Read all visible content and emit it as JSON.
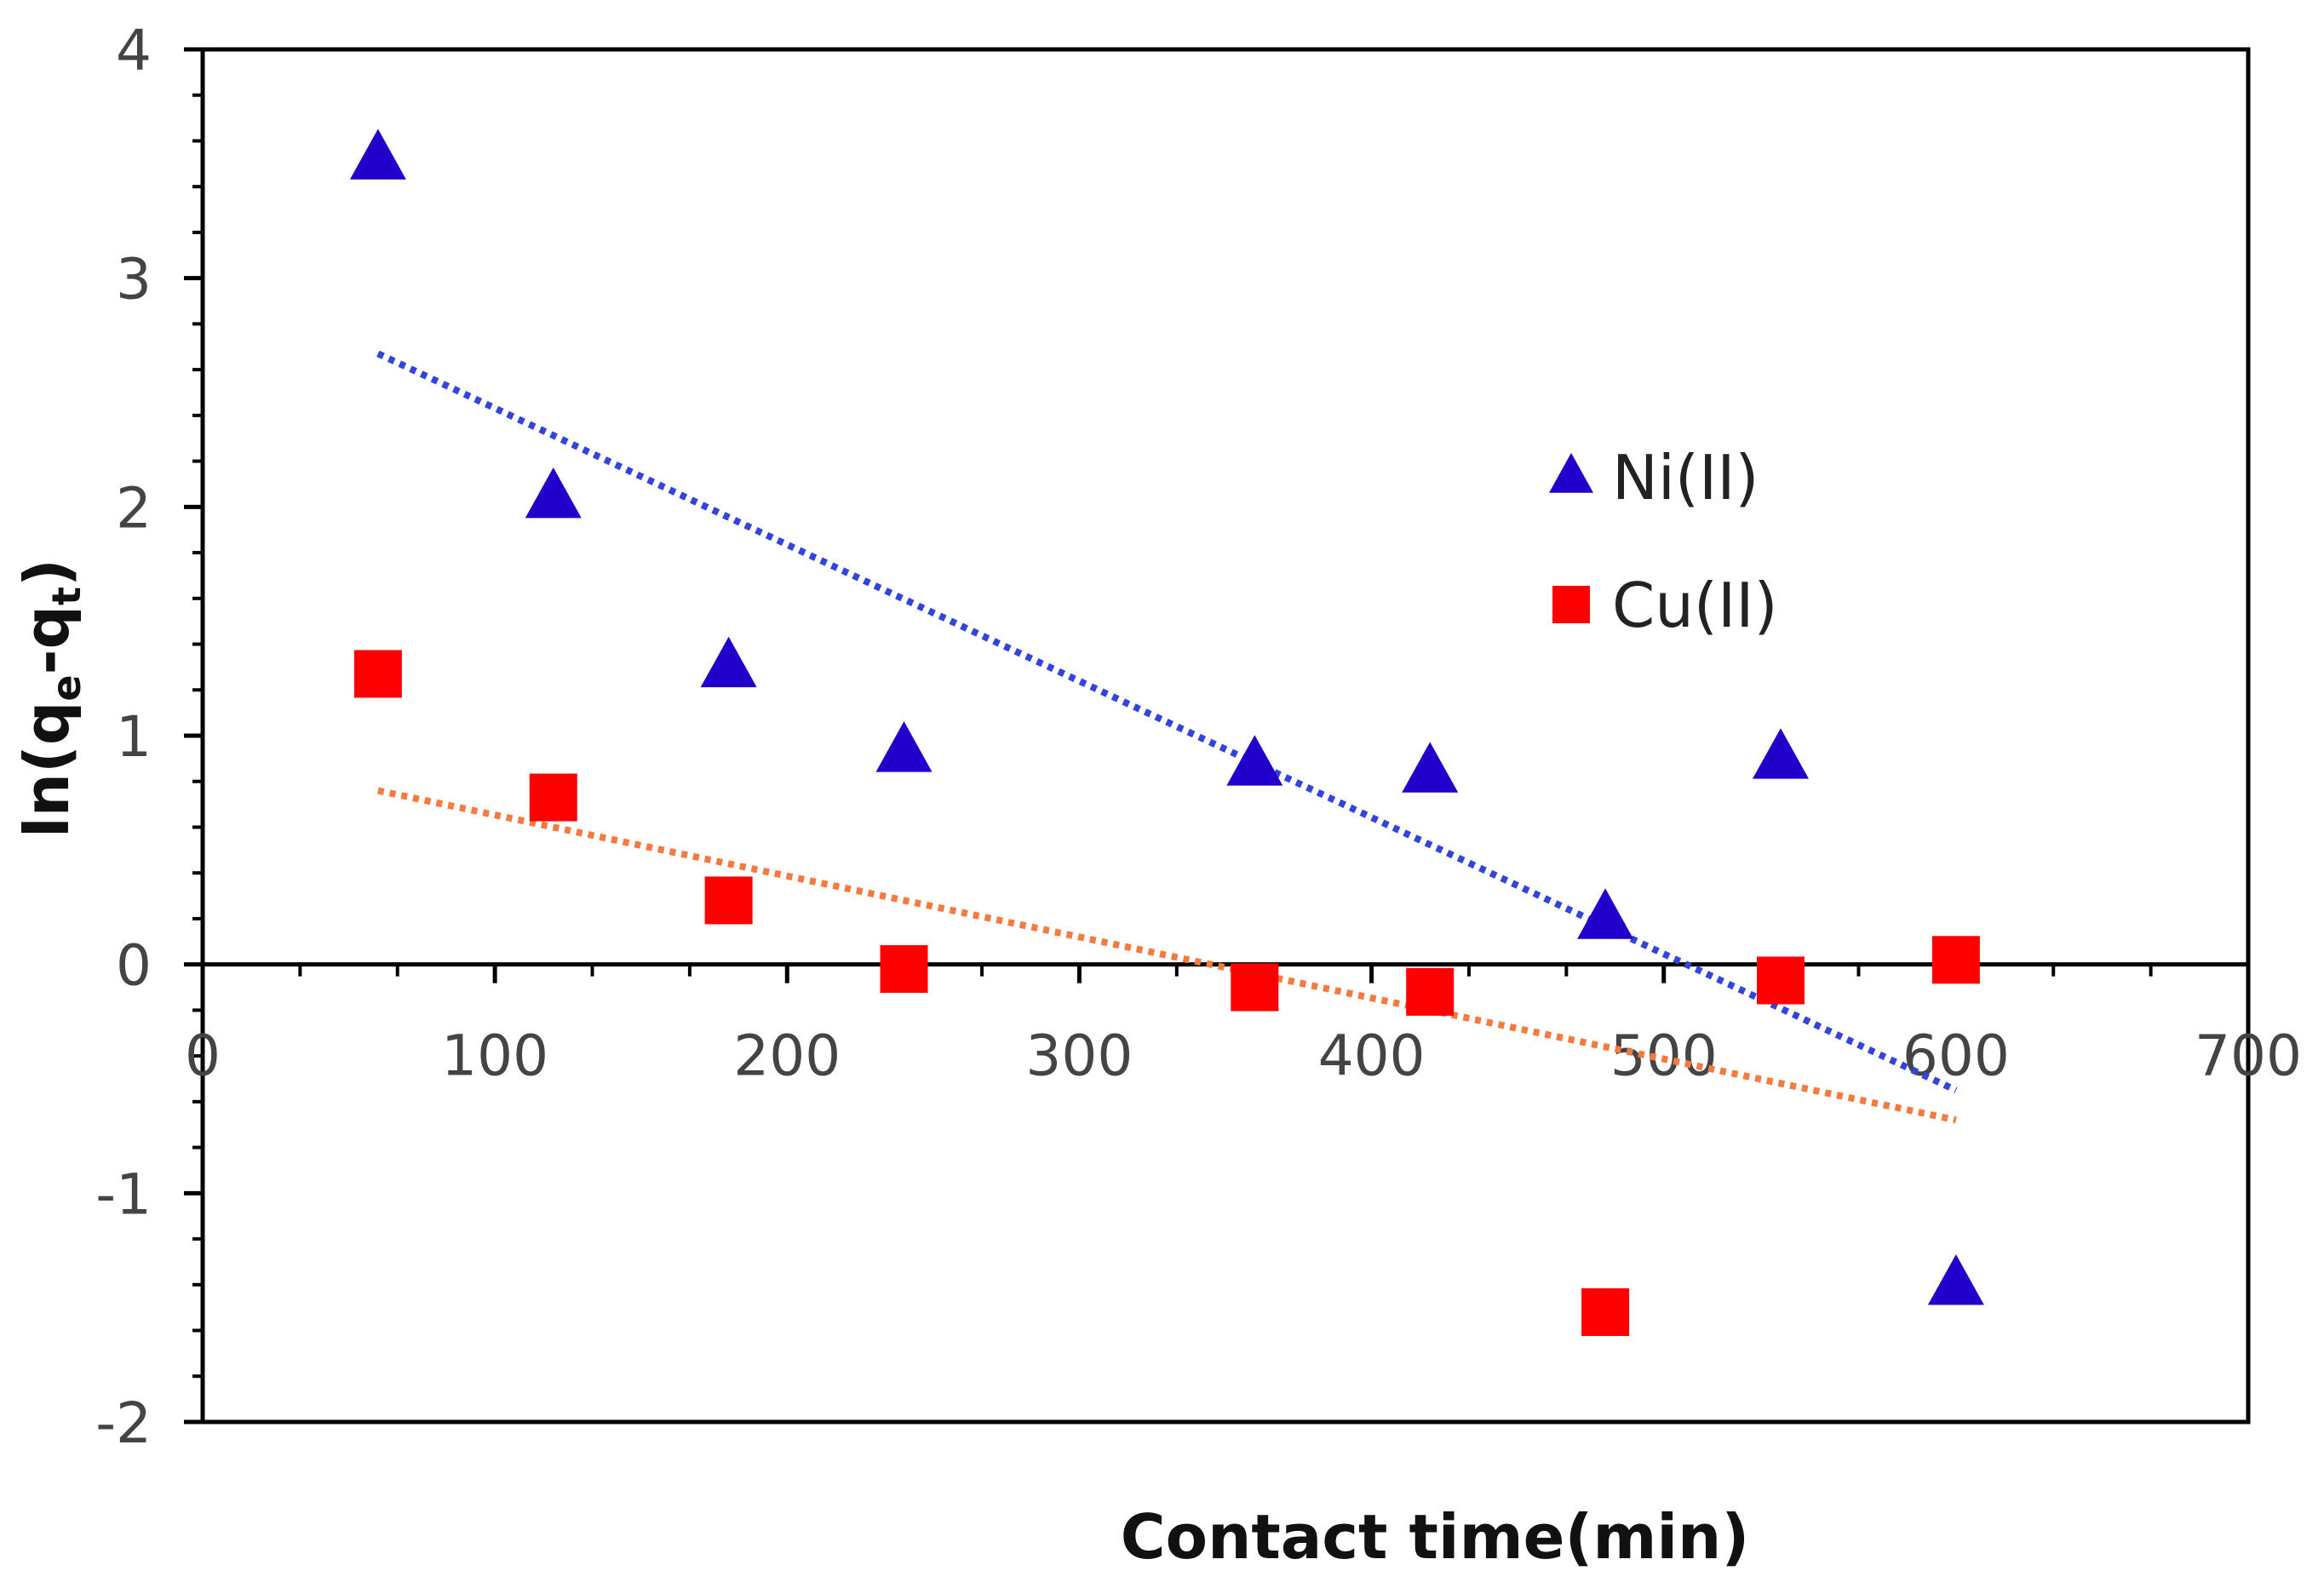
{
  "chart_data": {
    "type": "scatter",
    "title": "",
    "xlabel": "Contact time(min)",
    "ylabel_parts": [
      "ln(q",
      "e",
      "-q",
      "t",
      ")"
    ],
    "xlim": [
      0,
      700
    ],
    "ylim": [
      -2,
      4
    ],
    "xticks": [
      0,
      100,
      200,
      300,
      400,
      500,
      600,
      700
    ],
    "yticks": [
      -2,
      -1,
      0,
      1,
      2,
      3,
      4
    ],
    "legend_position": "right",
    "series": [
      {
        "name": "Ni(II)",
        "marker": "triangle",
        "color": "#2200cc",
        "x": [
          60,
          120,
          180,
          240,
          360,
          420,
          480,
          540,
          600
        ],
        "y": [
          3.52,
          2.04,
          1.3,
          0.93,
          0.87,
          0.84,
          0.2,
          0.9,
          -1.4
        ],
        "trendline": {
          "x": [
            60,
            600
          ],
          "y": [
            2.67,
            -0.55
          ],
          "color": "#3344dd"
        }
      },
      {
        "name": "Cu(II)",
        "marker": "square",
        "color": "#ff0000",
        "x": [
          60,
          120,
          180,
          240,
          360,
          420,
          480,
          540,
          600
        ],
        "y": [
          1.27,
          0.73,
          0.28,
          -0.02,
          -0.1,
          -0.12,
          -1.52,
          -0.07,
          0.02
        ],
        "trendline": {
          "x": [
            60,
            600
          ],
          "y": [
            0.76,
            -0.68
          ],
          "color": "#f47a40"
        }
      }
    ]
  }
}
